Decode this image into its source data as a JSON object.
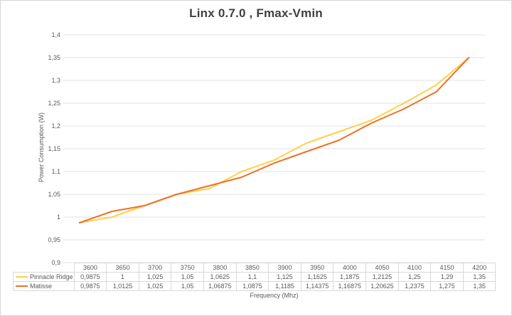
{
  "title": "Linx 0.7.0 , Fmax-Vmin",
  "colors": {
    "pinnacle_ridge": "#FFD04A",
    "matisse": "#ED7125",
    "gridline": "#E2E2E2",
    "table_border": "#D9D9D9",
    "axis_text": "#595959",
    "title_text": "#3F3F3F"
  },
  "chart_data": {
    "type": "line",
    "title": "Linx 0.7.0 , Fmax-Vmin",
    "xlabel": "Frequency (Mhz)",
    "ylabel": "Power Consumption (W)",
    "ylim": [
      0.9,
      1.4
    ],
    "ytick_step": 0.05,
    "grid": true,
    "legend_position": "table-left",
    "decimal_separator": ",",
    "categories": [
      "3600",
      "3650",
      "3700",
      "3750",
      "3800",
      "3850",
      "3900",
      "3950",
      "4000",
      "4050",
      "4100",
      "4150",
      "4200"
    ],
    "series": [
      {
        "name": "Pinnacle Ridge",
        "color": "#FFD04A",
        "values": [
          0.9875,
          1,
          1.025,
          1.05,
          1.0625,
          1.1,
          1.125,
          1.1625,
          1.1875,
          1.2125,
          1.25,
          1.29,
          1.35
        ]
      },
      {
        "name": "Matisse",
        "color": "#ED7125",
        "values": [
          0.9875,
          1.0125,
          1.025,
          1.05,
          1.06875,
          1.0875,
          1.1185,
          1.14375,
          1.16875,
          1.20625,
          1.2375,
          1.275,
          1.35
        ]
      }
    ]
  }
}
